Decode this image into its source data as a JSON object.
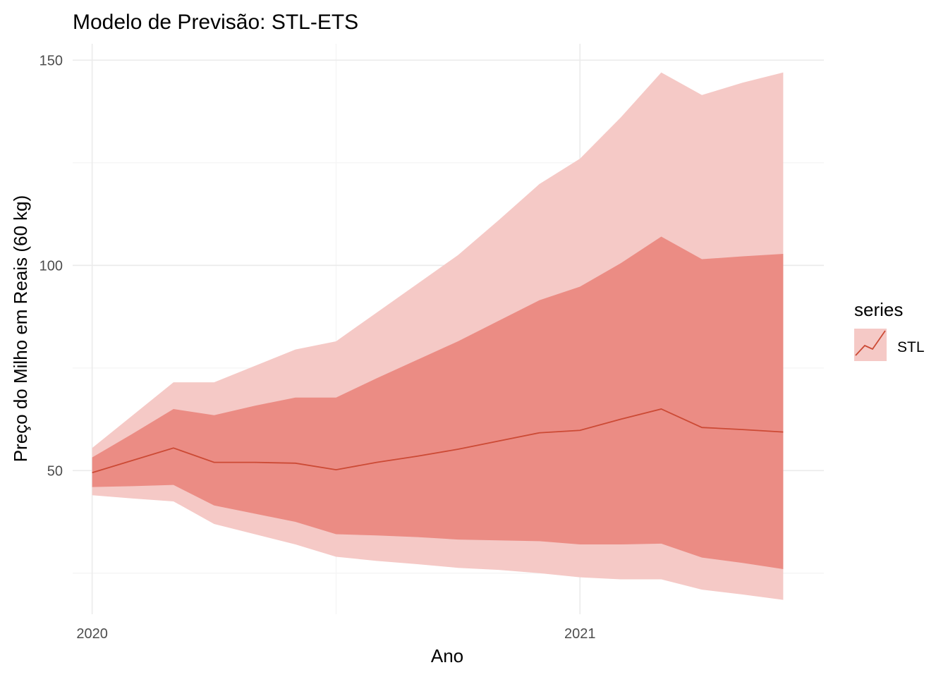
{
  "chart_data": {
    "type": "area",
    "title": "Modelo de Previsão: STL-ETS",
    "xlabel": "Ano",
    "ylabel": "Preço do Milho em Reais (60 kg)",
    "xlim": [
      2019.96,
      2021.5
    ],
    "ylim": [
      15,
      154
    ],
    "x_ticks": [
      2020,
      2021
    ],
    "x_tick_labels": [
      "2020",
      "2021"
    ],
    "x_minor_ticks": [
      2020.5
    ],
    "y_ticks": [
      50,
      100,
      150
    ],
    "y_tick_labels": [
      "50",
      "100",
      "150"
    ],
    "y_minor_ticks": [
      25,
      75,
      125
    ],
    "grid": true,
    "legend": {
      "title": "series",
      "position": "right",
      "entries": [
        "STL"
      ]
    },
    "colors": {
      "line": "#cc4a35",
      "band80": "#eb8c84",
      "band95": "#f5c9c6",
      "grid": "#ebebeb"
    },
    "x": [
      2020.0,
      2020.0833,
      2020.1667,
      2020.25,
      2020.3333,
      2020.4167,
      2020.5,
      2020.5833,
      2020.6667,
      2020.75,
      2020.8333,
      2020.9167,
      2021.0,
      2021.0833,
      2021.1667,
      2021.25,
      2021.3333,
      2021.4167
    ],
    "series": [
      {
        "name": "STL",
        "values": [
          49.5,
          52.5,
          55.5,
          52.0,
          52.0,
          51.8,
          50.2,
          52.0,
          53.5,
          55.2,
          57.2,
          59.2,
          59.8,
          62.5,
          65.0,
          60.5,
          60.0,
          59.4
        ],
        "lo80": [
          46.0,
          46.2,
          46.5,
          41.5,
          39.5,
          37.5,
          34.5,
          34.2,
          33.8,
          33.2,
          33.0,
          32.8,
          32.0,
          32.0,
          32.2,
          28.8,
          27.5,
          26.0
        ],
        "hi80": [
          53.2,
          59.0,
          65.0,
          63.5,
          65.8,
          67.8,
          67.8,
          72.5,
          77.0,
          81.5,
          86.5,
          91.5,
          94.8,
          100.5,
          107.0,
          101.5,
          102.2,
          102.8
        ],
        "lo95": [
          44.0,
          43.2,
          42.5,
          37.0,
          34.5,
          32.0,
          29.0,
          28.0,
          27.2,
          26.3,
          25.8,
          25.0,
          24.0,
          23.5,
          23.5,
          21.0,
          19.8,
          18.5
        ],
        "hi95": [
          55.5,
          63.5,
          71.5,
          71.5,
          75.5,
          79.5,
          81.5,
          88.5,
          95.5,
          102.5,
          111.0,
          119.8,
          126.0,
          136.0,
          147.0,
          141.5,
          144.5,
          147.0
        ]
      }
    ]
  }
}
